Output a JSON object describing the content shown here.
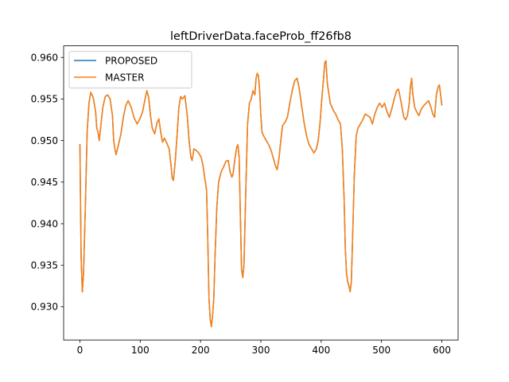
{
  "chart_data": {
    "type": "line",
    "title": "leftDriverData.faceProb_ff26fb8",
    "xlabel": "",
    "ylabel": "",
    "xlim": [
      -27,
      627
    ],
    "ylim": [
      0.926,
      0.9614
    ],
    "xticks": [
      0,
      100,
      200,
      300,
      400,
      500,
      600
    ],
    "xtick_labels": [
      "0",
      "100",
      "200",
      "300",
      "400",
      "500",
      "600"
    ],
    "yticks": [
      0.93,
      0.935,
      0.94,
      0.945,
      0.95,
      0.955,
      0.96
    ],
    "ytick_labels": [
      "0.930",
      "0.935",
      "0.940",
      "0.945",
      "0.950",
      "0.955",
      "0.960"
    ],
    "grid": false,
    "legend_position": "upper-left",
    "series_colors": {
      "PROPOSED": "#1f77b4",
      "MASTER": "#ff7f0e"
    },
    "keypoints": [
      [
        0,
        0.9495
      ],
      [
        2,
        0.936
      ],
      [
        4,
        0.9318
      ],
      [
        6,
        0.934
      ],
      [
        9,
        0.942
      ],
      [
        12,
        0.951
      ],
      [
        15,
        0.9545
      ],
      [
        18,
        0.9558
      ],
      [
        22,
        0.9552
      ],
      [
        26,
        0.9535
      ],
      [
        28,
        0.9515
      ],
      [
        30,
        0.951
      ],
      [
        32,
        0.95
      ],
      [
        35,
        0.952
      ],
      [
        38,
        0.954
      ],
      [
        42,
        0.9553
      ],
      [
        46,
        0.9555
      ],
      [
        50,
        0.955
      ],
      [
        54,
        0.953
      ],
      [
        56,
        0.95
      ],
      [
        58,
        0.949
      ],
      [
        60,
        0.9483
      ],
      [
        64,
        0.9495
      ],
      [
        68,
        0.9508
      ],
      [
        72,
        0.9528
      ],
      [
        76,
        0.9542
      ],
      [
        80,
        0.9548
      ],
      [
        85,
        0.954
      ],
      [
        90,
        0.9527
      ],
      [
        95,
        0.952
      ],
      [
        100,
        0.9527
      ],
      [
        104,
        0.9535
      ],
      [
        108,
        0.955
      ],
      [
        111,
        0.956
      ],
      [
        114,
        0.9552
      ],
      [
        117,
        0.953
      ],
      [
        120,
        0.9515
      ],
      [
        124,
        0.9508
      ],
      [
        128,
        0.9522
      ],
      [
        131,
        0.9526
      ],
      [
        134,
        0.951
      ],
      [
        137,
        0.9498
      ],
      [
        140,
        0.9503
      ],
      [
        144,
        0.9497
      ],
      [
        148,
        0.949
      ],
      [
        151,
        0.947
      ],
      [
        153,
        0.9455
      ],
      [
        155,
        0.9452
      ],
      [
        158,
        0.9475
      ],
      [
        161,
        0.9505
      ],
      [
        164,
        0.954
      ],
      [
        167,
        0.9553
      ],
      [
        170,
        0.955
      ],
      [
        174,
        0.9554
      ],
      [
        178,
        0.953
      ],
      [
        181,
        0.95
      ],
      [
        184,
        0.948
      ],
      [
        186,
        0.9476
      ],
      [
        189,
        0.949
      ],
      [
        193,
        0.9488
      ],
      [
        197,
        0.9485
      ],
      [
        201,
        0.948
      ],
      [
        204,
        0.947
      ],
      [
        207,
        0.9455
      ],
      [
        210,
        0.944
      ],
      [
        212,
        0.938
      ],
      [
        214,
        0.931
      ],
      [
        216,
        0.9285
      ],
      [
        218,
        0.9276
      ],
      [
        220,
        0.929
      ],
      [
        222,
        0.931
      ],
      [
        224,
        0.936
      ],
      [
        227,
        0.942
      ],
      [
        230,
        0.945
      ],
      [
        234,
        0.9462
      ],
      [
        238,
        0.9468
      ],
      [
        242,
        0.9475
      ],
      [
        246,
        0.9476
      ],
      [
        249,
        0.9462
      ],
      [
        252,
        0.9456
      ],
      [
        254,
        0.946
      ],
      [
        257,
        0.9478
      ],
      [
        260,
        0.9492
      ],
      [
        262,
        0.9495
      ],
      [
        264,
        0.948
      ],
      [
        266,
        0.941
      ],
      [
        268,
        0.9345
      ],
      [
        270,
        0.9335
      ],
      [
        272,
        0.935
      ],
      [
        275,
        0.944
      ],
      [
        278,
        0.952
      ],
      [
        281,
        0.9545
      ],
      [
        284,
        0.955
      ],
      [
        287,
        0.956
      ],
      [
        290,
        0.9555
      ],
      [
        292,
        0.9575
      ],
      [
        294,
        0.9581
      ],
      [
        296,
        0.9578
      ],
      [
        298,
        0.956
      ],
      [
        300,
        0.953
      ],
      [
        302,
        0.951
      ],
      [
        305,
        0.9505
      ],
      [
        309,
        0.95
      ],
      [
        313,
        0.9495
      ],
      [
        317,
        0.9488
      ],
      [
        321,
        0.9478
      ],
      [
        324,
        0.947
      ],
      [
        327,
        0.9465
      ],
      [
        330,
        0.9478
      ],
      [
        333,
        0.95
      ],
      [
        336,
        0.9518
      ],
      [
        340,
        0.9522
      ],
      [
        344,
        0.9528
      ],
      [
        348,
        0.9545
      ],
      [
        352,
        0.956
      ],
      [
        356,
        0.9572
      ],
      [
        360,
        0.9575
      ],
      [
        363,
        0.9565
      ],
      [
        366,
        0.955
      ],
      [
        369,
        0.9535
      ],
      [
        372,
        0.952
      ],
      [
        376,
        0.9505
      ],
      [
        380,
        0.9495
      ],
      [
        384,
        0.949
      ],
      [
        388,
        0.9485
      ],
      [
        392,
        0.949
      ],
      [
        395,
        0.95
      ],
      [
        398,
        0.952
      ],
      [
        401,
        0.955
      ],
      [
        404,
        0.9575
      ],
      [
        406,
        0.9594
      ],
      [
        408,
        0.9596
      ],
      [
        410,
        0.957
      ],
      [
        412,
        0.956
      ],
      [
        415,
        0.9545
      ],
      [
        418,
        0.954
      ],
      [
        421,
        0.9535
      ],
      [
        424,
        0.9532
      ],
      [
        428,
        0.9525
      ],
      [
        432,
        0.952
      ],
      [
        435,
        0.949
      ],
      [
        438,
        0.943
      ],
      [
        440,
        0.937
      ],
      [
        442,
        0.934
      ],
      [
        444,
        0.933
      ],
      [
        446,
        0.9325
      ],
      [
        448,
        0.9318
      ],
      [
        450,
        0.933
      ],
      [
        452,
        0.938
      ],
      [
        455,
        0.946
      ],
      [
        458,
        0.9505
      ],
      [
        461,
        0.9515
      ],
      [
        465,
        0.952
      ],
      [
        469,
        0.9525
      ],
      [
        473,
        0.9532
      ],
      [
        477,
        0.953
      ],
      [
        481,
        0.9528
      ],
      [
        485,
        0.952
      ],
      [
        489,
        0.9532
      ],
      [
        493,
        0.954
      ],
      [
        497,
        0.9545
      ],
      [
        501,
        0.954
      ],
      [
        505,
        0.9545
      ],
      [
        509,
        0.9535
      ],
      [
        513,
        0.9528
      ],
      [
        517,
        0.9538
      ],
      [
        521,
        0.955
      ],
      [
        525,
        0.956
      ],
      [
        528,
        0.9562
      ],
      [
        531,
        0.9552
      ],
      [
        534,
        0.954
      ],
      [
        537,
        0.9528
      ],
      [
        540,
        0.9525
      ],
      [
        543,
        0.953
      ],
      [
        546,
        0.9545
      ],
      [
        548,
        0.9565
      ],
      [
        550,
        0.9575
      ],
      [
        552,
        0.9555
      ],
      [
        555,
        0.954
      ],
      [
        558,
        0.9535
      ],
      [
        562,
        0.953
      ],
      [
        566,
        0.9538
      ],
      [
        570,
        0.9542
      ],
      [
        574,
        0.9545
      ],
      [
        578,
        0.9548
      ],
      [
        582,
        0.954
      ],
      [
        585,
        0.9532
      ],
      [
        588,
        0.9528
      ],
      [
        591,
        0.9555
      ],
      [
        594,
        0.9565
      ],
      [
        596,
        0.9567
      ],
      [
        598,
        0.9555
      ],
      [
        600,
        0.9543
      ]
    ],
    "series": [
      {
        "name": "PROPOSED",
        "color": "#1f77b4"
      },
      {
        "name": "MASTER",
        "color": "#ff7f0e"
      }
    ]
  }
}
